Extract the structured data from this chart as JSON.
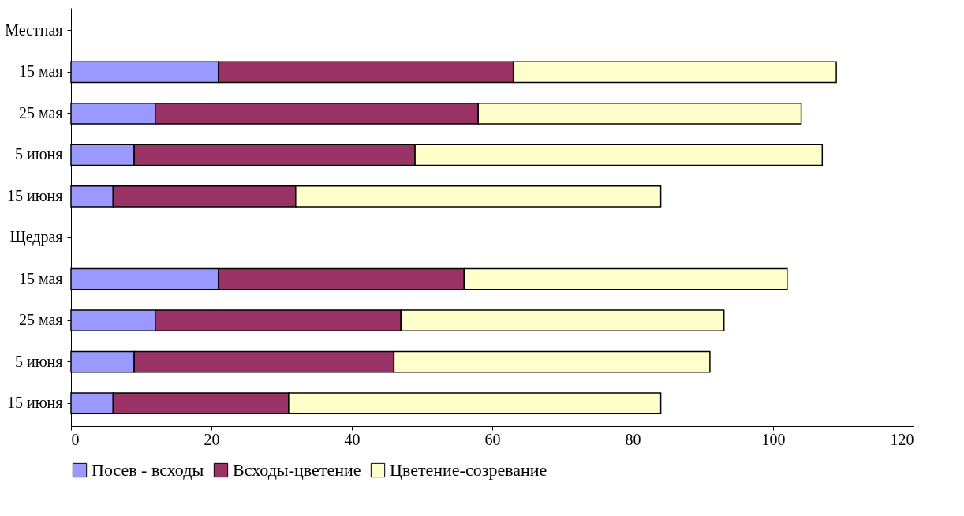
{
  "chart_data": {
    "type": "bar",
    "orientation": "horizontal",
    "stacked": true,
    "categories": [
      "Местная",
      "15 мая",
      "25 мая",
      "5 июня",
      "15 июня",
      "Щедрая",
      "15 мая",
      "25 мая",
      "5 июня",
      "15 июня"
    ],
    "series": [
      {
        "name": "Посев - всходы",
        "color": "#9999ff",
        "values": [
          null,
          21,
          12,
          9,
          6,
          null,
          21,
          12,
          9,
          6
        ]
      },
      {
        "name": "Всходы-цветение",
        "color": "#993366",
        "values": [
          null,
          42,
          46,
          40,
          26,
          null,
          35,
          35,
          37,
          25
        ]
      },
      {
        "name": "Цветение-созревание",
        "color": "#ffffcc",
        "values": [
          null,
          46,
          46,
          58,
          52,
          null,
          46,
          46,
          45,
          53
        ]
      }
    ],
    "xlim": [
      0,
      120
    ],
    "xticks": [
      0,
      20,
      40,
      60,
      80,
      100,
      120
    ],
    "grid": false,
    "legend": "bottom"
  }
}
